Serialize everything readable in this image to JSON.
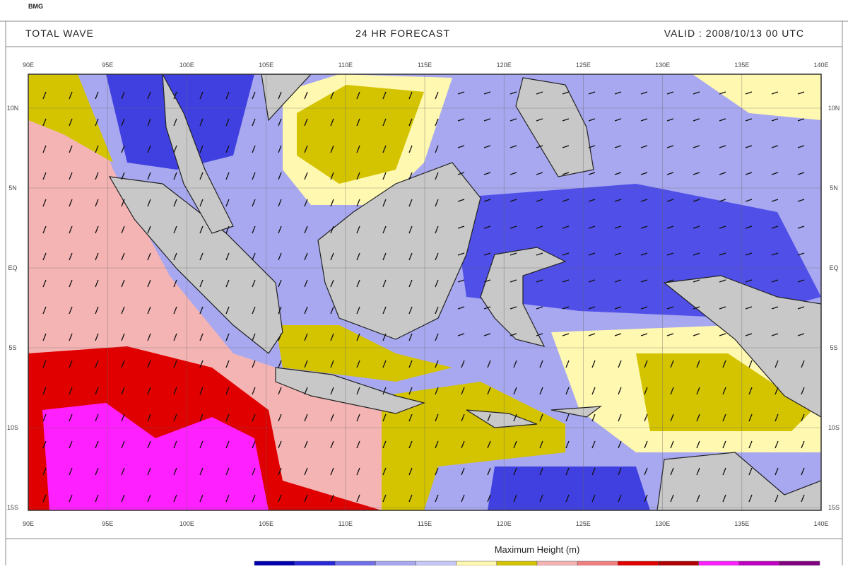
{
  "logo": "BMG",
  "header": {
    "left": "TOTAL WAVE",
    "center": "24  HR FORECAST",
    "right": "VALID :  2008/10/13 00  UTC"
  },
  "map": {
    "lon_labels": [
      "90E",
      "95E",
      "100E",
      "105E",
      "110E",
      "115E",
      "120E",
      "125E",
      "130E",
      "135E",
      "140E"
    ],
    "lat_labels": [
      "10N",
      "5N",
      "EQ",
      "5S",
      "10S",
      "15S"
    ]
  },
  "legend": {
    "title": "Maximum Height (m)"
  }
}
